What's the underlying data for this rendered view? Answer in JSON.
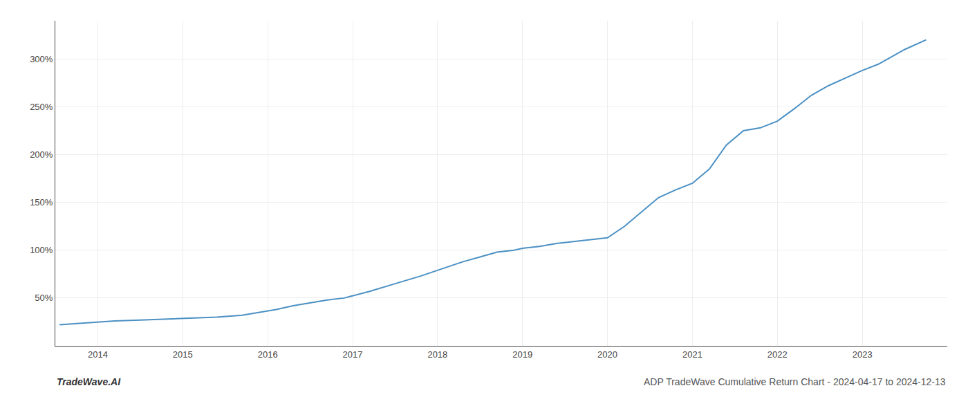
{
  "chart_data": {
    "type": "line",
    "title": "ADP TradeWave Cumulative Return Chart - 2024-04-17 to 2024-12-13",
    "annotations": [
      "TradeWave.AI"
    ],
    "x": [
      2013.55,
      2013.7,
      2013.85,
      2014.0,
      2014.2,
      2014.5,
      2014.8,
      2015.1,
      2015.4,
      2015.7,
      2015.9,
      2016.1,
      2016.3,
      2016.5,
      2016.7,
      2016.9,
      2017.2,
      2017.5,
      2017.8,
      2018.1,
      2018.3,
      2018.5,
      2018.7,
      2018.9,
      2019.0,
      2019.2,
      2019.4,
      2019.6,
      2019.8,
      2020.0,
      2020.2,
      2020.4,
      2020.6,
      2020.8,
      2021.0,
      2021.2,
      2021.4,
      2021.6,
      2021.8,
      2022.0,
      2022.2,
      2022.4,
      2022.6,
      2022.8,
      2023.0,
      2023.2,
      2023.5,
      2023.75
    ],
    "values": [
      22,
      23,
      24,
      25,
      26,
      27,
      28,
      29,
      30,
      32,
      35,
      38,
      42,
      45,
      48,
      50,
      57,
      65,
      73,
      82,
      88,
      93,
      98,
      100,
      102,
      104,
      107,
      109,
      111,
      113,
      125,
      140,
      155,
      163,
      170,
      185,
      210,
      225,
      228,
      235,
      248,
      262,
      272,
      280,
      288,
      295,
      310,
      320
    ],
    "color": "#4a90c4",
    "xlim": [
      2013.5,
      2024.0
    ],
    "xticks": [
      2014,
      2015,
      2016,
      2017,
      2018,
      2019,
      2020,
      2021,
      2022,
      2023
    ],
    "ylim": [
      0,
      340
    ],
    "yticks": [
      {
        "value": 50,
        "label": "50%"
      },
      {
        "value": 100,
        "label": "100%"
      },
      {
        "value": 150,
        "label": "150%"
      },
      {
        "value": 200,
        "label": "200%"
      },
      {
        "value": 250,
        "label": "250%"
      },
      {
        "value": 300,
        "label": "300%"
      }
    ],
    "grid": true
  }
}
